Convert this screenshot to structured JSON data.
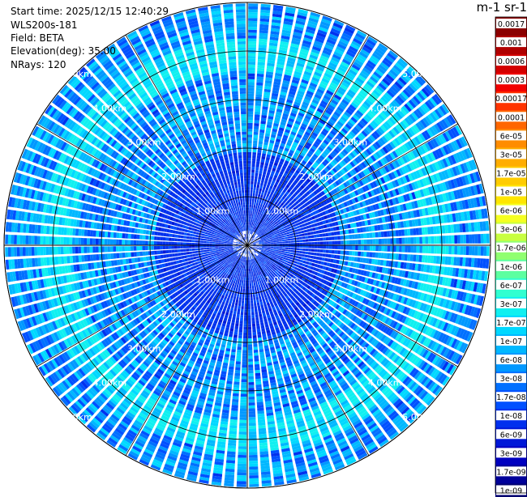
{
  "header": {
    "start_time": "Start time: 2025/12/15 12:40:29",
    "device": "WLS200s-181",
    "field": "Field: BETA",
    "elevation": "Elevation(deg): 35.00",
    "nrays": "NRays: 120"
  },
  "colorbar": {
    "title": "m-1 sr-1",
    "labels": [
      "0.0017",
      "0.001",
      "0.0006",
      "0.0003",
      "0.00017",
      "0.0001",
      "6e-05",
      "3e-05",
      "1.7e-05",
      "1e-05",
      "6e-06",
      "3e-06",
      "1.7e-06",
      "1e-06",
      "6e-07",
      "3e-07",
      "1.7e-07",
      "1e-07",
      "6e-08",
      "3e-08",
      "1.7e-08",
      "1e-08",
      "6e-09",
      "3e-09",
      "1.7e-09",
      "1e-09"
    ],
    "colors": [
      "#8b0000",
      "#b00000",
      "#d40000",
      "#f20000",
      "#ff3300",
      "#ff6600",
      "#ff8c00",
      "#ffad00",
      "#ffcc00",
      "#ffe600",
      "#f5ff20",
      "#c8ff40",
      "#90ff70",
      "#5cffa0",
      "#30ffd0",
      "#10f0f0",
      "#00d8ff",
      "#00b8ff",
      "#0098ff",
      "#0070ff",
      "#0050ff",
      "#0030ee",
      "#0018d8",
      "#0000c0",
      "#00009a",
      "#000070"
    ]
  },
  "chart_data": {
    "type": "heatmap",
    "projection": "polar (PPI scan)",
    "field": "BETA",
    "elevation_deg": 35.0,
    "n_rays": 120,
    "max_range_km": 5.0,
    "range_ring_labels": [
      "1.00km",
      "2.00km",
      "3.00km",
      "4.00km",
      "5.00km"
    ],
    "range_rings_km": [
      1,
      2,
      3,
      4,
      5
    ],
    "color_scale": "log",
    "value_range": [
      1e-09,
      0.0017
    ],
    "pattern": {
      "background_level": "3e-08",
      "enhanced_ring_km": 3.9,
      "enhanced_ring_level": "3e-07",
      "near_range_level": "1e-08"
    }
  }
}
